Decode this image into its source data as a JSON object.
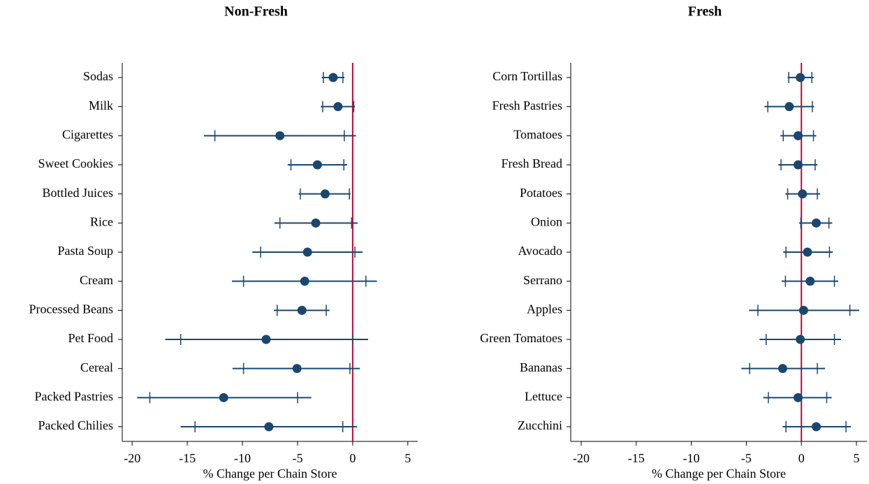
{
  "chart_data": [
    {
      "type": "coefplot",
      "title": "Non-Fresh",
      "xlabel": "% Change per Chain Store",
      "categories": [
        "Sodas",
        "Milk",
        "Cigarettes",
        "Sweet Cookies",
        "Bottled Juices",
        "Rice",
        "Pasta Soup",
        "Cream",
        "Processed Beans",
        "Pet Food",
        "Cereal",
        "Packed Pastries",
        "Packed Chilies"
      ],
      "values": [
        -1.77,
        -1.33,
        -6.6,
        -3.2,
        -2.5,
        -3.35,
        -4.1,
        -4.35,
        -4.6,
        -7.85,
        -5.05,
        -11.7,
        -7.6
      ],
      "ci90_low": [
        -2.66,
        -2.72,
        -12.5,
        -5.6,
        -4.75,
        -6.6,
        -8.35,
        -9.9,
        -6.85,
        -15.6,
        -9.9,
        -18.4,
        -14.3
      ],
      "ci90_high": [
        -0.89,
        0.1,
        -0.76,
        -0.8,
        -0.3,
        -0.1,
        0.2,
        1.2,
        -2.4,
        0,
        -0.25,
        -5.0,
        -0.9
      ],
      "ci95_low": [
        -2.8,
        -2.9,
        -13.5,
        -5.9,
        -4.9,
        -7.1,
        -9.1,
        -10.95,
        -7.15,
        -17.0,
        -10.9,
        -19.55,
        -15.6
      ],
      "ci95_high": [
        -0.75,
        0.2,
        0.3,
        -0.5,
        -0.2,
        0.45,
        0.9,
        2.2,
        -2.1,
        1.4,
        0.65,
        -3.75,
        0.4
      ],
      "xlim": [
        -20.9,
        5.9
      ],
      "xticks": [
        -20,
        -15,
        -10,
        -5,
        0,
        5
      ],
      "refline": 0,
      "color": "#1a476f",
      "refline_color": "#c10534"
    },
    {
      "type": "coefplot",
      "title": "Fresh",
      "xlabel": "% Change per Chain Store",
      "categories": [
        "Corn Tortillas",
        "Fresh Pastries",
        "Tomatoes",
        "Fresh Bread",
        "Potatoes",
        "Onion",
        "Avocado",
        "Serrano",
        "Apples",
        "Green Tomatoes",
        "Bananas",
        "Lettuce",
        "Zucchini"
      ],
      "values": [
        -0.1,
        -1.1,
        -0.3,
        -0.3,
        0.1,
        1.35,
        0.55,
        0.8,
        0.2,
        -0.1,
        -1.7,
        -0.3,
        1.35
      ],
      "ci90_low": [
        -1.15,
        -3.05,
        -1.65,
        -1.85,
        -1.25,
        -0.05,
        -1.4,
        -1.45,
        -3.95,
        -3.2,
        -4.7,
        -3.0,
        -1.4
      ],
      "ci90_high": [
        0.95,
        1.0,
        1.1,
        1.25,
        1.45,
        2.5,
        2.55,
        3.0,
        4.4,
        3.0,
        1.45,
        2.3,
        4.05
      ],
      "ci95_low": [
        -1.25,
        -3.35,
        -1.9,
        -2.1,
        -1.45,
        -0.2,
        -1.65,
        -1.8,
        -4.75,
        -3.8,
        -5.45,
        -3.45,
        -1.7
      ],
      "ci95_high": [
        1.1,
        1.15,
        1.35,
        1.45,
        1.7,
        2.8,
        2.85,
        3.35,
        5.25,
        3.6,
        2.15,
        2.75,
        4.5
      ],
      "xlim": [
        -20.95,
        5.95
      ],
      "xticks": [
        -20,
        -15,
        -10,
        -5,
        0,
        5
      ],
      "refline": 0,
      "color": "#1a476f",
      "refline_color": "#c10534"
    }
  ]
}
